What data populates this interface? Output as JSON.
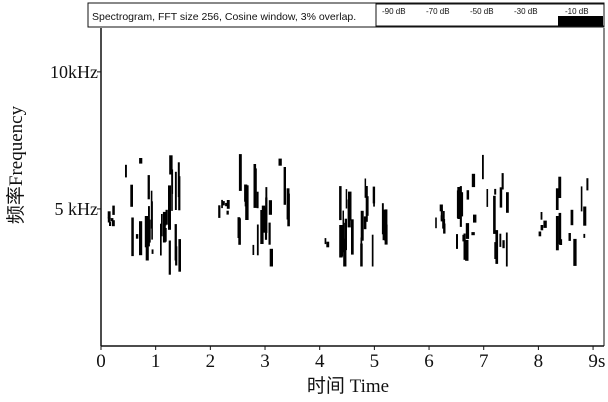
{
  "header": {
    "title": "Spectrogram, FFT size 256, Cosine window, 3% overlap.",
    "legend": [
      "-90 dB",
      "-70 dB",
      "-50 dB",
      "-30 dB",
      "-10 dB"
    ]
  },
  "chart_data": {
    "type": "heatmap",
    "title": "Spectrogram, FFT size 256, Cosine window, 3% overlap.",
    "xlabel": "时间 Time",
    "ylabel": "频率Frequency",
    "xlim": [
      0,
      9.2
    ],
    "ylim": [
      0,
      11.6
    ],
    "x_unit": "s",
    "y_unit": "kHz",
    "x_ticks": [
      0,
      1,
      2,
      3,
      4,
      5,
      6,
      7,
      8,
      9
    ],
    "x_tick_labels": [
      "0",
      "1",
      "2",
      "3",
      "4",
      "5",
      "6",
      "7",
      "8",
      "9"
    ],
    "y_ticks": [
      5,
      10
    ],
    "y_tick_labels": [
      "5 kHz",
      "10kHz"
    ],
    "x_end_label": "s",
    "color_scale_db": [
      "-90 dB",
      "-70 dB",
      "-50 dB",
      "-30 dB",
      "-10 dB"
    ],
    "bursts": [
      {
        "t_start": 0.05,
        "t_end": 0.25,
        "f_low": 4.3,
        "f_high": 5.2,
        "seed": 3
      },
      {
        "t_start": 0.42,
        "t_end": 1.45,
        "f_low": 2.6,
        "f_high": 7.0,
        "seed": 11
      },
      {
        "t_start": 2.15,
        "t_end": 2.35,
        "f_low": 4.4,
        "f_high": 5.5,
        "seed": 17
      },
      {
        "t_start": 2.5,
        "t_end": 3.45,
        "f_low": 2.9,
        "f_high": 7.1,
        "seed": 23
      },
      {
        "t_start": 4.1,
        "t_end": 4.25,
        "f_low": 3.6,
        "f_high": 4.8,
        "seed": 29
      },
      {
        "t_start": 4.35,
        "t_end": 5.35,
        "f_low": 2.9,
        "f_high": 6.6,
        "seed": 37
      },
      {
        "t_start": 6.1,
        "t_end": 6.3,
        "f_low": 4.0,
        "f_high": 5.3,
        "seed": 41
      },
      {
        "t_start": 6.5,
        "t_end": 7.5,
        "f_low": 2.9,
        "f_high": 7.1,
        "seed": 47
      },
      {
        "t_start": 7.95,
        "t_end": 8.15,
        "f_low": 4.0,
        "f_high": 5.0,
        "seed": 53
      },
      {
        "t_start": 8.25,
        "t_end": 9.15,
        "f_low": 2.9,
        "f_high": 7.0,
        "seed": 59
      }
    ]
  }
}
